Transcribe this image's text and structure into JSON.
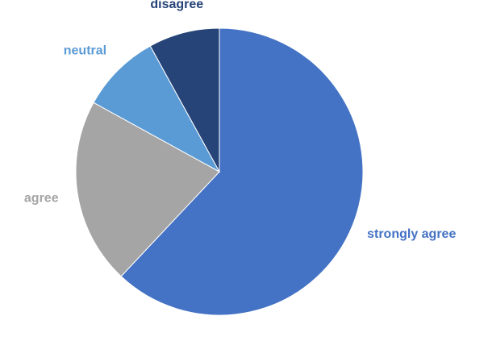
{
  "chart_data": {
    "type": "pie",
    "title": "",
    "categories": [
      "strongly agree",
      "agree",
      "neutral",
      "disagree"
    ],
    "values": [
      62,
      21,
      9,
      8
    ],
    "colors": [
      "#4472C4",
      "#A5A5A5",
      "#5B9BD5",
      "#264478"
    ],
    "label_colors": [
      "#4472C4",
      "#A5A5A5",
      "#5B9BD5",
      "#264478"
    ],
    "start_angle_deg": 0,
    "direction": "clockwise",
    "legend": "none",
    "labels_position": "outside"
  }
}
